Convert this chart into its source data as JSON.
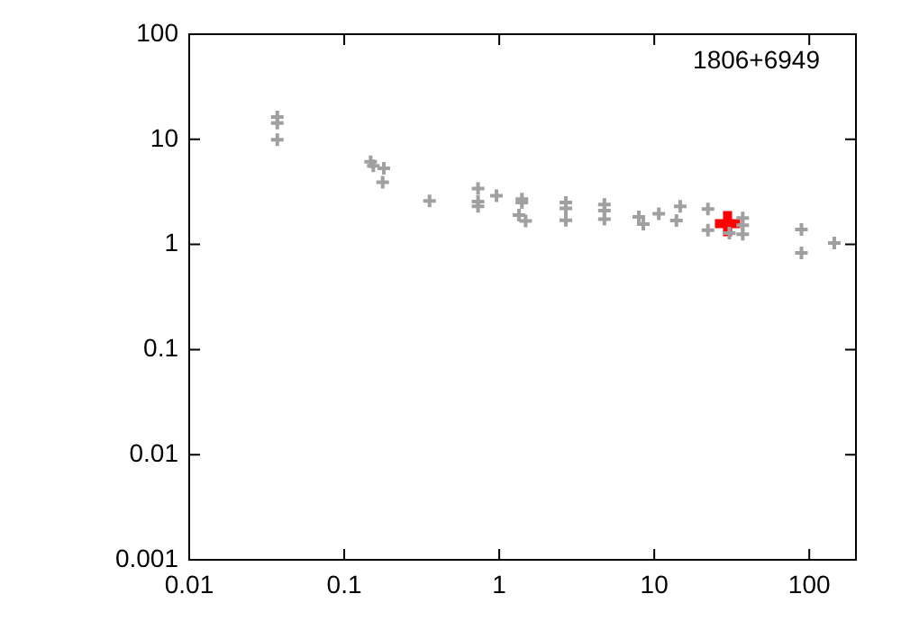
{
  "chart_data": {
    "type": "scatter",
    "log": "xy",
    "grid": false,
    "legend": false,
    "marker": "cross",
    "xlim": [
      0.01,
      200
    ],
    "xticks": [
      0.01,
      0.1,
      1,
      10,
      100
    ],
    "ylim": [
      0.001,
      100
    ],
    "yticks": [
      0.001,
      0.01,
      0.1,
      1,
      10,
      100
    ],
    "annotations": [
      "1806+6949"
    ],
    "series": [
      {
        "color": "#a0a0a0",
        "x": [
          0.037,
          0.037,
          0.037,
          0.148,
          0.154,
          0.18,
          0.177,
          0.355,
          0.73,
          0.73,
          0.73,
          0.96,
          1.4,
          1.4,
          1.34,
          1.48,
          2.69,
          2.69,
          2.69,
          4.77,
          4.77,
          4.77,
          7.95,
          8.5,
          10.7,
          14.7,
          13.9,
          22.2,
          22.2,
          37.2,
          37.2,
          37.2,
          30.5,
          89,
          89,
          145
        ],
        "values": [
          16.3,
          14.3,
          9.9,
          6.1,
          5.6,
          5.3,
          3.9,
          2.6,
          3.4,
          2.55,
          2.3,
          2.9,
          2.7,
          2.5,
          1.9,
          1.67,
          2.5,
          2.2,
          1.7,
          2.4,
          2.1,
          1.74,
          1.83,
          1.56,
          1.96,
          2.3,
          1.69,
          2.17,
          1.37,
          1.78,
          1.52,
          1.25,
          1.28,
          1.39,
          0.83,
          1.03
        ]
      },
      {
        "color": "#ff0000",
        "x": [
          29.7
        ],
        "values": [
          1.58
        ]
      }
    ]
  }
}
